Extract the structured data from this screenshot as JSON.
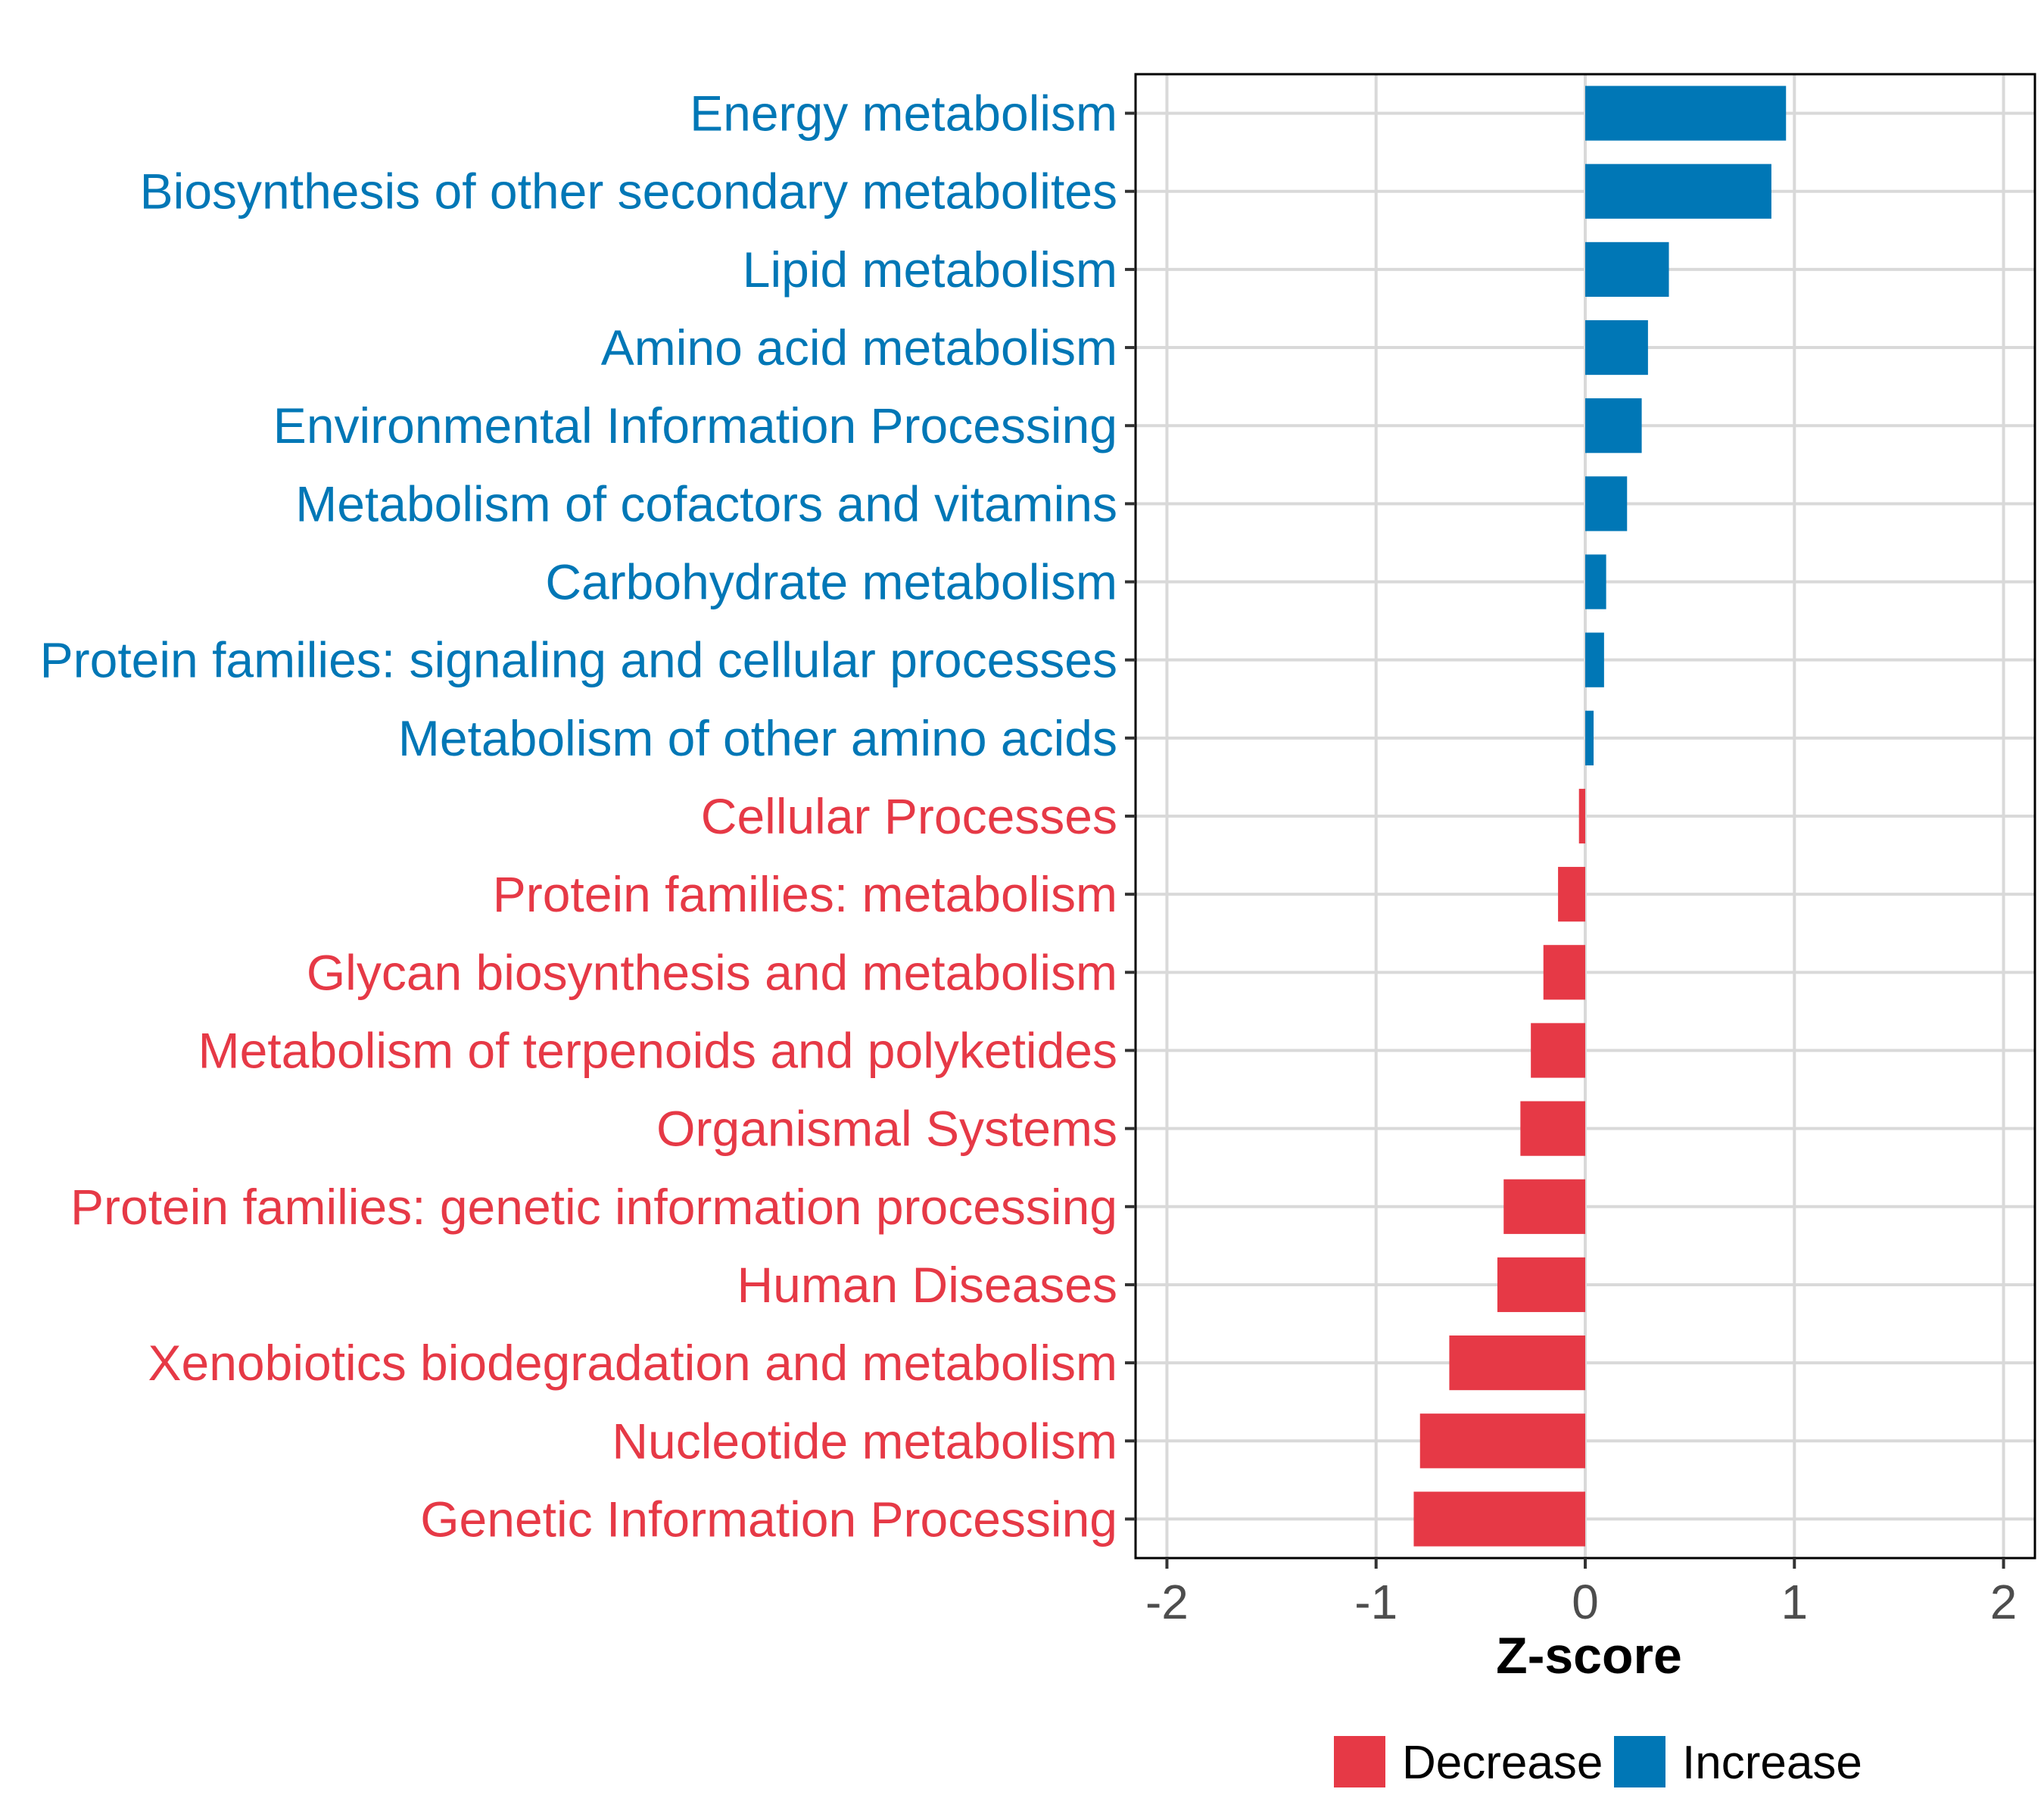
{
  "chart_data": {
    "type": "bar",
    "orientation": "horizontal",
    "title": "",
    "xlabel": "Z-score",
    "ylabel": "",
    "xlim": [
      -2.15,
      2.15
    ],
    "xticks": [
      -2,
      -1,
      0,
      1,
      2
    ],
    "xtick_labels": [
      "-2",
      "-1",
      "0",
      "1",
      "2"
    ],
    "grid": true,
    "legend_position": "bottom",
    "categories": [
      "Energy metabolism",
      "Biosynthesis of other secondary metabolites",
      "Lipid metabolism",
      "Amino acid metabolism",
      "Environmental Information Processing",
      "Metabolism of cofactors and vitamins",
      "Carbohydrate metabolism",
      "Protein families: signaling and cellular processes",
      "Metabolism of other amino acids",
      "Cellular Processes",
      "Protein families: metabolism",
      "Glycan biosynthesis and metabolism",
      "Metabolism of terpenoids and polyketides",
      "Organismal Systems",
      "Protein families: genetic information processing",
      "Human Diseases",
      "Xenobiotics biodegradation and metabolism",
      "Nucleotide metabolism",
      "Genetic Information Processing"
    ],
    "values": [
      0.96,
      0.89,
      0.4,
      0.3,
      0.27,
      0.2,
      0.1,
      0.09,
      0.04,
      -0.03,
      -0.13,
      -0.2,
      -0.26,
      -0.31,
      -0.39,
      -0.42,
      -0.65,
      -0.79,
      -0.82
    ],
    "groups": [
      "Increase",
      "Increase",
      "Increase",
      "Increase",
      "Increase",
      "Increase",
      "Increase",
      "Increase",
      "Increase",
      "Decrease",
      "Decrease",
      "Decrease",
      "Decrease",
      "Decrease",
      "Decrease",
      "Decrease",
      "Decrease",
      "Decrease",
      "Decrease"
    ],
    "legend": [
      {
        "label": "Decrease",
        "color": "#e63946"
      },
      {
        "label": "Increase",
        "color": "#0077b6"
      }
    ],
    "colors": {
      "Decrease": "#e63946",
      "Increase": "#0077b6"
    }
  }
}
